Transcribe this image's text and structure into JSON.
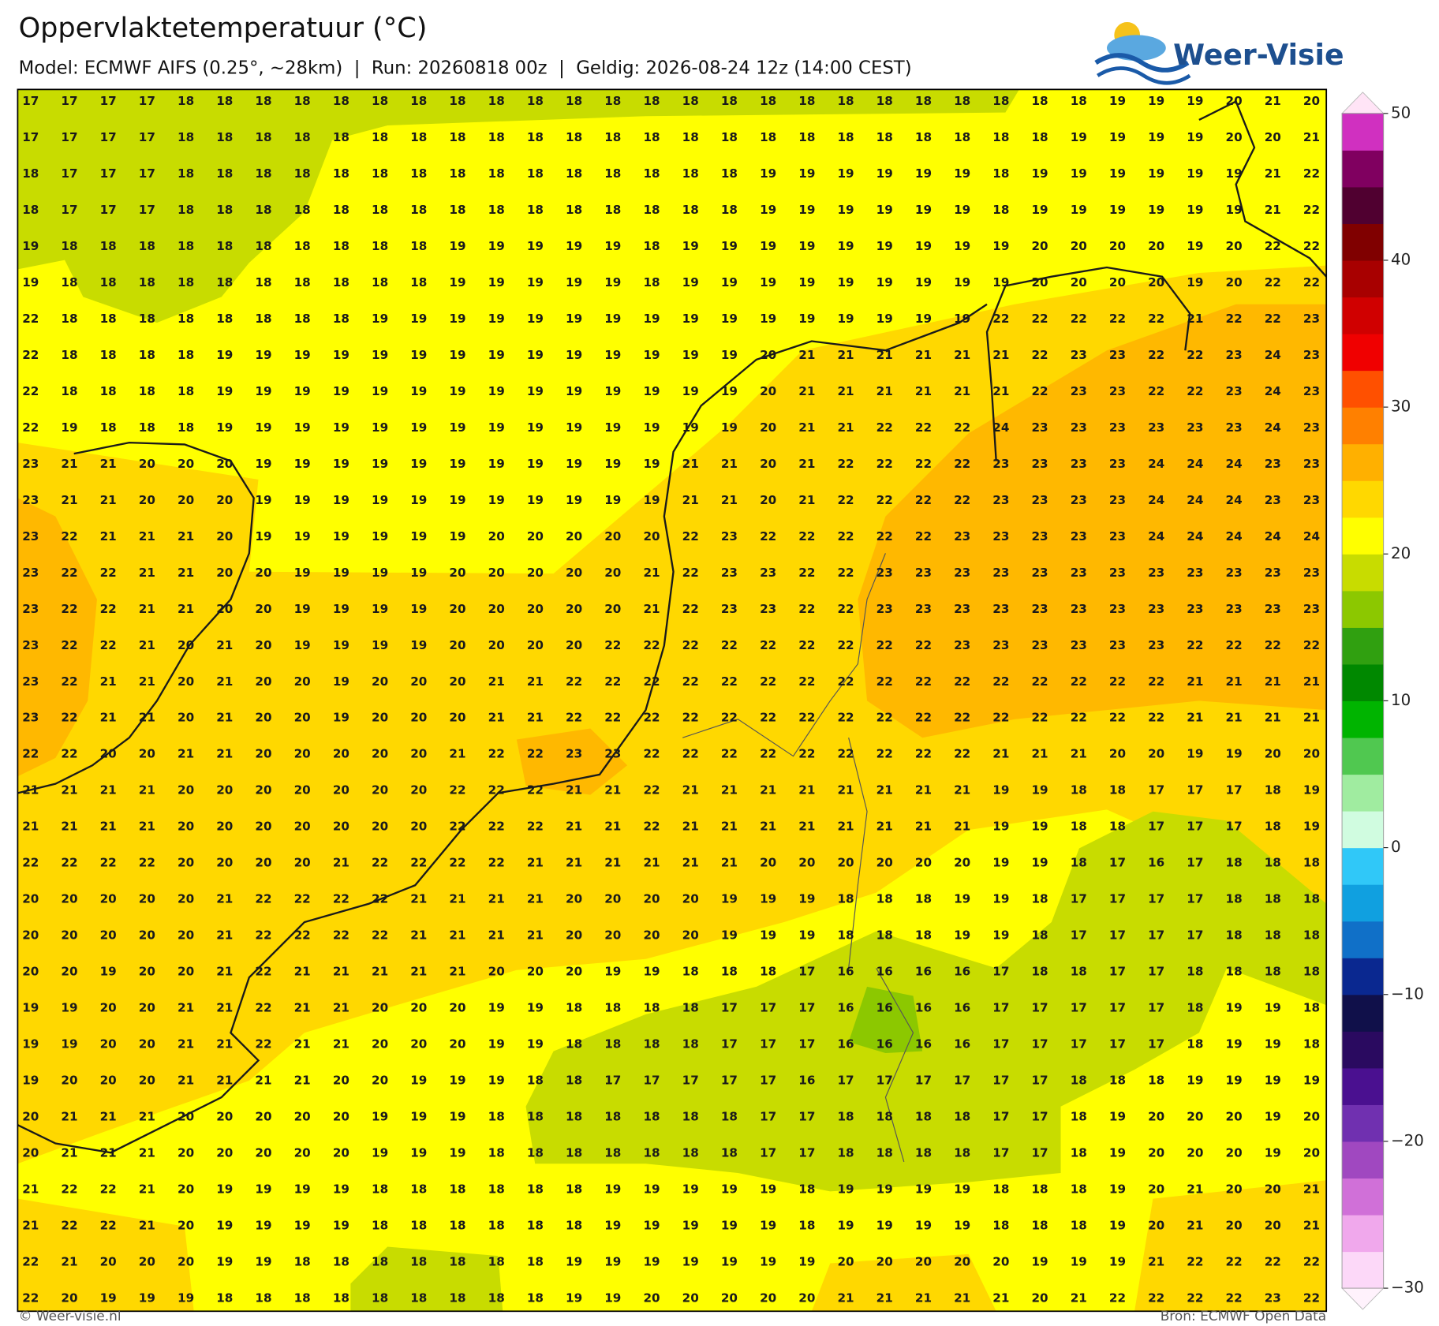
{
  "header": {
    "title": "Oppervlaktetemperatuur (°C)",
    "subtitle": "Model: ECMWF AIFS (0.25°, ~28km)  |  Run: 20260818 00z  |  Geldig: 2026-08-24 12z (14:00 CEST)",
    "logo": "Weer-Visie"
  },
  "map": {
    "grid": [
      [
        17,
        17,
        17,
        17,
        18,
        18,
        18,
        18,
        18,
        18,
        18,
        18,
        18,
        18,
        18,
        18,
        18,
        18,
        18,
        18,
        18,
        18,
        18,
        18,
        18,
        18,
        18,
        18,
        19,
        19,
        19,
        20,
        21,
        20
      ],
      [
        17,
        17,
        17,
        17,
        18,
        18,
        18,
        18,
        18,
        18,
        18,
        18,
        18,
        18,
        18,
        18,
        18,
        18,
        18,
        18,
        18,
        18,
        18,
        18,
        18,
        18,
        18,
        19,
        19,
        19,
        19,
        20,
        20,
        21
      ],
      [
        18,
        17,
        17,
        17,
        18,
        18,
        18,
        18,
        18,
        18,
        18,
        18,
        18,
        18,
        18,
        18,
        18,
        18,
        18,
        19,
        19,
        19,
        19,
        19,
        19,
        18,
        19,
        19,
        19,
        19,
        19,
        19,
        21,
        22
      ],
      [
        18,
        17,
        17,
        17,
        18,
        18,
        18,
        18,
        18,
        18,
        18,
        18,
        18,
        18,
        18,
        18,
        18,
        18,
        18,
        19,
        19,
        19,
        19,
        19,
        19,
        18,
        19,
        19,
        19,
        19,
        19,
        19,
        21,
        22
      ],
      [
        19,
        18,
        18,
        18,
        18,
        18,
        18,
        18,
        18,
        18,
        18,
        19,
        19,
        19,
        19,
        19,
        18,
        19,
        19,
        19,
        19,
        19,
        19,
        19,
        19,
        19,
        20,
        20,
        20,
        20,
        19,
        20,
        22,
        22
      ],
      [
        19,
        18,
        18,
        18,
        18,
        18,
        18,
        18,
        18,
        18,
        18,
        19,
        19,
        19,
        19,
        19,
        18,
        19,
        19,
        19,
        19,
        19,
        19,
        19,
        19,
        19,
        20,
        20,
        20,
        20,
        19,
        20,
        22,
        22
      ],
      [
        22,
        18,
        18,
        18,
        18,
        18,
        18,
        18,
        18,
        19,
        19,
        19,
        19,
        19,
        19,
        19,
        19,
        19,
        19,
        19,
        19,
        19,
        19,
        19,
        19,
        22,
        22,
        22,
        22,
        22,
        21,
        22,
        22,
        23
      ],
      [
        22,
        18,
        18,
        18,
        18,
        19,
        19,
        19,
        19,
        19,
        19,
        19,
        19,
        19,
        19,
        19,
        19,
        19,
        19,
        20,
        21,
        21,
        21,
        21,
        21,
        21,
        22,
        23,
        23,
        22,
        22,
        23,
        24,
        23
      ],
      [
        22,
        18,
        18,
        18,
        18,
        19,
        19,
        19,
        19,
        19,
        19,
        19,
        19,
        19,
        19,
        19,
        19,
        19,
        19,
        20,
        21,
        21,
        21,
        21,
        21,
        21,
        22,
        23,
        23,
        22,
        22,
        23,
        24,
        23
      ],
      [
        22,
        19,
        18,
        18,
        18,
        19,
        19,
        19,
        19,
        19,
        19,
        19,
        19,
        19,
        19,
        19,
        19,
        19,
        19,
        20,
        21,
        21,
        22,
        22,
        22,
        24,
        23,
        23,
        23,
        23,
        23,
        23,
        24,
        23
      ],
      [
        23,
        21,
        21,
        20,
        20,
        20,
        19,
        19,
        19,
        19,
        19,
        19,
        19,
        19,
        19,
        19,
        19,
        21,
        21,
        20,
        21,
        22,
        22,
        22,
        22,
        23,
        23,
        23,
        23,
        24,
        24,
        24,
        23,
        23
      ],
      [
        23,
        21,
        21,
        20,
        20,
        20,
        19,
        19,
        19,
        19,
        19,
        19,
        19,
        19,
        19,
        19,
        19,
        21,
        21,
        20,
        21,
        22,
        22,
        22,
        22,
        23,
        23,
        23,
        23,
        24,
        24,
        24,
        23,
        23
      ],
      [
        23,
        22,
        21,
        21,
        21,
        20,
        19,
        19,
        19,
        19,
        19,
        19,
        20,
        20,
        20,
        20,
        20,
        22,
        23,
        22,
        22,
        22,
        22,
        22,
        23,
        23,
        23,
        23,
        23,
        24,
        24,
        24,
        24,
        24
      ],
      [
        23,
        22,
        22,
        21,
        21,
        20,
        20,
        19,
        19,
        19,
        19,
        20,
        20,
        20,
        20,
        20,
        21,
        22,
        23,
        23,
        22,
        22,
        23,
        23,
        23,
        23,
        23,
        23,
        23,
        23,
        23,
        23,
        23,
        23
      ],
      [
        23,
        22,
        22,
        21,
        21,
        20,
        20,
        19,
        19,
        19,
        19,
        20,
        20,
        20,
        20,
        20,
        21,
        22,
        23,
        23,
        22,
        22,
        23,
        23,
        23,
        23,
        23,
        23,
        23,
        23,
        23,
        23,
        23,
        23
      ],
      [
        23,
        22,
        22,
        21,
        20,
        21,
        20,
        19,
        19,
        19,
        19,
        20,
        20,
        20,
        20,
        22,
        22,
        22,
        22,
        22,
        22,
        22,
        22,
        22,
        23,
        23,
        23,
        23,
        23,
        23,
        22,
        22,
        22,
        22
      ],
      [
        23,
        22,
        21,
        21,
        20,
        21,
        20,
        20,
        19,
        20,
        20,
        20,
        21,
        21,
        22,
        22,
        22,
        22,
        22,
        22,
        22,
        22,
        22,
        22,
        22,
        22,
        22,
        22,
        22,
        22,
        21,
        21,
        21,
        21
      ],
      [
        23,
        22,
        21,
        21,
        20,
        21,
        20,
        20,
        19,
        20,
        20,
        20,
        21,
        21,
        22,
        22,
        22,
        22,
        22,
        22,
        22,
        22,
        22,
        22,
        22,
        22,
        22,
        22,
        22,
        22,
        21,
        21,
        21,
        21
      ],
      [
        22,
        22,
        20,
        20,
        21,
        21,
        20,
        20,
        20,
        20,
        20,
        21,
        22,
        22,
        23,
        23,
        22,
        22,
        22,
        22,
        22,
        22,
        22,
        22,
        22,
        21,
        21,
        21,
        20,
        20,
        19,
        19,
        20,
        20
      ],
      [
        21,
        21,
        21,
        21,
        20,
        20,
        20,
        20,
        20,
        20,
        20,
        22,
        22,
        22,
        21,
        21,
        22,
        21,
        21,
        21,
        21,
        21,
        21,
        21,
        21,
        19,
        19,
        18,
        18,
        17,
        17,
        17,
        18,
        19
      ],
      [
        21,
        21,
        21,
        21,
        20,
        20,
        20,
        20,
        20,
        20,
        20,
        22,
        22,
        22,
        21,
        21,
        22,
        21,
        21,
        21,
        21,
        21,
        21,
        21,
        21,
        19,
        19,
        18,
        18,
        17,
        17,
        17,
        18,
        19
      ],
      [
        22,
        22,
        22,
        22,
        20,
        20,
        20,
        20,
        21,
        22,
        22,
        22,
        22,
        21,
        21,
        21,
        21,
        21,
        21,
        20,
        20,
        20,
        20,
        20,
        20,
        19,
        19,
        18,
        17,
        16,
        17,
        18,
        18,
        18
      ],
      [
        20,
        20,
        20,
        20,
        20,
        21,
        22,
        22,
        22,
        22,
        21,
        21,
        21,
        21,
        20,
        20,
        20,
        20,
        19,
        19,
        19,
        18,
        18,
        18,
        19,
        19,
        18,
        17,
        17,
        17,
        17,
        18,
        18,
        18
      ],
      [
        20,
        20,
        20,
        20,
        20,
        21,
        22,
        22,
        22,
        22,
        21,
        21,
        21,
        21,
        20,
        20,
        20,
        20,
        19,
        19,
        19,
        18,
        18,
        18,
        19,
        19,
        18,
        17,
        17,
        17,
        17,
        18,
        18,
        18
      ],
      [
        20,
        20,
        19,
        20,
        20,
        21,
        22,
        21,
        21,
        21,
        21,
        21,
        20,
        20,
        20,
        19,
        19,
        18,
        18,
        18,
        17,
        16,
        16,
        16,
        16,
        17,
        18,
        18,
        17,
        17,
        18,
        18,
        18,
        18
      ],
      [
        19,
        19,
        20,
        20,
        21,
        21,
        22,
        21,
        21,
        20,
        20,
        20,
        19,
        19,
        18,
        18,
        18,
        18,
        17,
        17,
        17,
        16,
        16,
        16,
        16,
        17,
        17,
        17,
        17,
        17,
        18,
        19,
        19,
        18
      ],
      [
        19,
        19,
        20,
        20,
        21,
        21,
        22,
        21,
        21,
        20,
        20,
        20,
        19,
        19,
        18,
        18,
        18,
        18,
        17,
        17,
        17,
        16,
        16,
        16,
        16,
        17,
        17,
        17,
        17,
        17,
        18,
        19,
        19,
        18
      ],
      [
        19,
        20,
        20,
        20,
        21,
        21,
        21,
        21,
        20,
        20,
        19,
        19,
        19,
        18,
        18,
        17,
        17,
        17,
        17,
        17,
        16,
        17,
        17,
        17,
        17,
        17,
        17,
        18,
        18,
        18,
        19,
        19,
        19,
        19
      ],
      [
        20,
        21,
        21,
        21,
        20,
        20,
        20,
        20,
        20,
        19,
        19,
        19,
        18,
        18,
        18,
        18,
        18,
        18,
        18,
        17,
        17,
        18,
        18,
        18,
        18,
        17,
        17,
        18,
        19,
        20,
        20,
        20,
        19,
        20
      ],
      [
        20,
        21,
        21,
        21,
        20,
        20,
        20,
        20,
        20,
        19,
        19,
        19,
        18,
        18,
        18,
        18,
        18,
        18,
        18,
        17,
        17,
        18,
        18,
        18,
        18,
        17,
        17,
        18,
        19,
        20,
        20,
        20,
        19,
        20
      ],
      [
        21,
        22,
        22,
        21,
        20,
        19,
        19,
        19,
        19,
        18,
        18,
        18,
        18,
        18,
        18,
        19,
        19,
        19,
        19,
        19,
        18,
        19,
        19,
        19,
        19,
        18,
        18,
        18,
        19,
        20,
        21,
        20,
        20,
        21
      ],
      [
        21,
        22,
        22,
        21,
        20,
        19,
        19,
        19,
        19,
        18,
        18,
        18,
        18,
        18,
        18,
        19,
        19,
        19,
        19,
        19,
        18,
        19,
        19,
        19,
        19,
        18,
        18,
        18,
        19,
        20,
        21,
        20,
        20,
        21
      ],
      [
        22,
        21,
        20,
        20,
        20,
        19,
        19,
        18,
        18,
        18,
        18,
        18,
        18,
        18,
        19,
        19,
        19,
        19,
        19,
        19,
        19,
        20,
        20,
        20,
        20,
        20,
        19,
        19,
        19,
        21,
        22,
        22,
        22,
        22
      ],
      [
        22,
        20,
        19,
        19,
        19,
        18,
        18,
        18,
        18,
        18,
        18,
        18,
        18,
        18,
        19,
        19,
        20,
        20,
        20,
        20,
        20,
        21,
        21,
        21,
        21,
        21,
        20,
        21,
        22,
        22,
        22,
        22,
        23,
        22
      ]
    ]
  },
  "colorbar": {
    "lim": [
      -30,
      50
    ],
    "ticks": [
      {
        "value": -30,
        "label": "−30"
      },
      {
        "value": -20,
        "label": "−20"
      },
      {
        "value": -10,
        "label": "−10"
      },
      0,
      10,
      20,
      30,
      40,
      50
    ],
    "colors": [
      "#fcd8f8",
      "#f0a8ec",
      "#d070d8",
      "#a048c0",
      "#7030b0",
      "#4a1090",
      "#2a0a60",
      "#10104a",
      "#0a2890",
      "#1070c8",
      "#10a0e0",
      "#30c8f8",
      "#d0fce0",
      "#a0eca0",
      "#50c850",
      "#00b400",
      "#008800",
      "#30a010",
      "#8cc800",
      "#c8dc00",
      "#ffff00",
      "#ffd800",
      "#ffb000",
      "#ff8000",
      "#ff5000",
      "#f00000",
      "#d00000",
      "#a80000",
      "#800000",
      "#500030",
      "#800060",
      "#d030c0"
    ]
  },
  "footer": {
    "left": "© Weer-visie.nl",
    "right": "Bron: ECMWF Open Data"
  }
}
